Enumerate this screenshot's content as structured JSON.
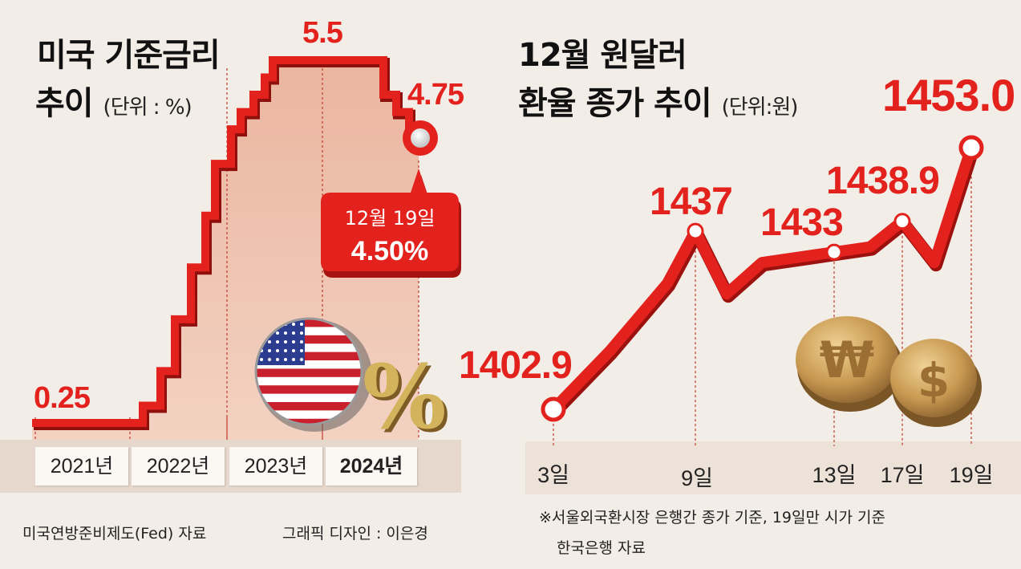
{
  "left_chart": {
    "title_line1": "미국 기준금리",
    "title_line2": "추이",
    "unit": "(단위 : %)",
    "years": [
      "2021년",
      "2022년",
      "2023년",
      "2024년"
    ],
    "active_year": "2024년",
    "start_label": "0.25",
    "peak_label": "5.5",
    "end_label": "4.75",
    "callout_date": "12월 19일",
    "callout_value": "4.50%",
    "source": "미국연방준비제도(Fed) 자료",
    "credit": "그래픽 디자인 : 이은경"
  },
  "right_chart": {
    "title_line1": "12월 원달러",
    "title_line2": "환율 종가 추이",
    "unit": "(단위:원)",
    "note_line1": "※서울외국환시장 은행간 종가 기준, 19일만 시가 기준",
    "note_line2": "한국은행 자료"
  },
  "chart_data": [
    {
      "type": "line",
      "title": "미국 기준금리 추이",
      "unit": "%",
      "categories": [
        "2021년",
        "2022년",
        "2023년",
        "2024년"
      ],
      "labeled_points": [
        {
          "label": "0.25",
          "value": 0.25
        },
        {
          "label": "5.5",
          "value": 5.5
        },
        {
          "label": "4.75",
          "value": 4.75
        },
        {
          "label": "12월 19일",
          "value": 4.5
        }
      ],
      "step_values": [
        0.25,
        0.5,
        1.0,
        1.75,
        2.5,
        3.25,
        4.0,
        4.5,
        4.75,
        5.0,
        5.25,
        5.5,
        5.0,
        4.75,
        4.5
      ],
      "ylim": [
        0,
        5.5
      ]
    },
    {
      "type": "line",
      "title": "12월 원달러 환율 종가 추이",
      "unit": "원",
      "x_labels": [
        "3일",
        "9일",
        "13일",
        "17일",
        "19일"
      ],
      "points": [
        {
          "x": "3일",
          "y": 1402.9,
          "label": "1402.9"
        },
        {
          "x": "9일",
          "y": 1437,
          "label": "1437"
        },
        {
          "x": "13일",
          "y": 1433,
          "label": "1433"
        },
        {
          "x": "17일",
          "y": 1438.9,
          "label": "1438.9"
        },
        {
          "x": "19일",
          "y": 1453.0,
          "label": "1453.0"
        }
      ],
      "daily_series": [
        1402.9,
        1414,
        1427,
        1437,
        1425,
        1431,
        1433,
        1434,
        1438.9,
        1431,
        1453.0
      ]
    }
  ],
  "colors": {
    "line": "#e3211d",
    "fill": "#e7a38a",
    "background": "#f3ede7"
  },
  "icons": [
    "us-flag-coin-icon",
    "percent-icon",
    "won-coin-icon",
    "dollar-coin-icon"
  ]
}
